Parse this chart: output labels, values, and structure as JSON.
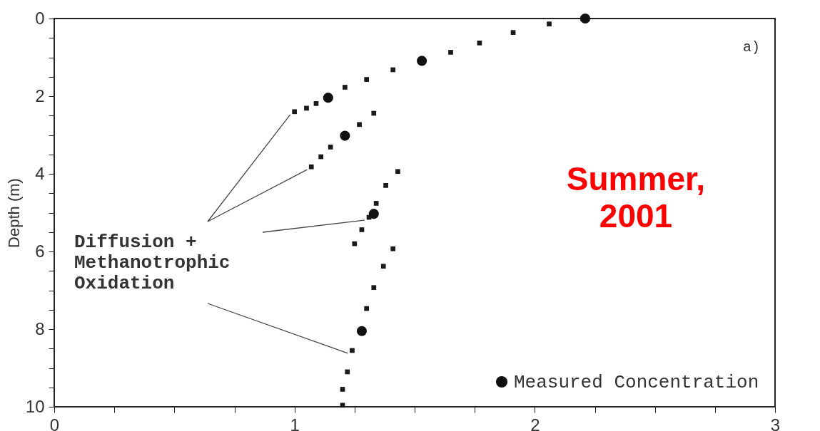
{
  "chart_data": {
    "type": "scatter",
    "ylabel": "Depth (m)",
    "xlim": [
      0,
      3
    ],
    "xticks": [
      0,
      {
        "value": 0.25,
        "label": null
      },
      {
        "value": 0.5,
        "label": null
      },
      {
        "value": 0.75,
        "label": null
      },
      1,
      {
        "value": 1.25,
        "label": null
      },
      {
        "value": 1.5,
        "label": null
      },
      {
        "value": 1.75,
        "label": null
      },
      2,
      {
        "value": 2.25,
        "label": null
      },
      {
        "value": 2.5,
        "label": null
      },
      {
        "value": 2.75,
        "label": null
      },
      3
    ],
    "ylim": [
      10,
      0
    ],
    "yticks": [
      0,
      {
        "value": 0.5,
        "label": null
      },
      {
        "value": 1,
        "label": null
      },
      {
        "value": 1.5,
        "label": null
      },
      2,
      {
        "value": 2.5,
        "label": null
      },
      {
        "value": 3,
        "label": null
      },
      {
        "value": 3.5,
        "label": null
      },
      4,
      {
        "value": 4.5,
        "label": null
      },
      {
        "value": 5,
        "label": null
      },
      {
        "value": 5.5,
        "label": null
      },
      6,
      {
        "value": 6.5,
        "label": null
      },
      {
        "value": 7,
        "label": null
      },
      {
        "value": 7.5,
        "label": null
      },
      8,
      {
        "value": 8.5,
        "label": null
      },
      {
        "value": 9,
        "label": null
      },
      {
        "value": 9.5,
        "label": null
      },
      10
    ],
    "legend": "bottom right",
    "grid": false,
    "annotations": [
      "a)",
      {
        "text": "Diffusion +\nMethanotrophic\nOxidation",
        "x": 1.0,
        "y": 2.4
      },
      "Summer,\n2001"
    ],
    "series": [
      {
        "marker": "square",
        "color": "#1a1a1a",
        "x": [
          2.2,
          2.06,
          1.91,
          1.77,
          1.65,
          1.41,
          1.3,
          1.21,
          1.09,
          1.05,
          1.0
        ],
        "values": [
          0,
          0.14,
          0.36,
          0.63,
          0.87,
          1.32,
          1.57,
          1.77,
          2.19,
          2.31,
          2.4
        ]
      },
      {
        "marker": "square",
        "color": "#1a1a1a",
        "x": [
          1.33,
          1.27,
          1.15,
          1.11,
          1.07
        ],
        "values": [
          2.44,
          2.73,
          3.31,
          3.56,
          3.82
        ]
      },
      {
        "marker": "square",
        "color": "#1a1a1a",
        "x": [
          1.43,
          1.38,
          1.34,
          1.31,
          1.28,
          1.25
        ],
        "values": [
          3.94,
          4.3,
          4.76,
          5.12,
          5.44,
          5.8
        ]
      },
      {
        "marker": "square",
        "color": "#1a1a1a",
        "x": [
          1.41,
          1.37,
          1.33,
          1.3,
          1.24,
          1.22,
          1.2,
          1.2
        ],
        "values": [
          5.93,
          6.38,
          6.93,
          7.47,
          8.55,
          9.1,
          9.55,
          9.96
        ]
      },
      {
        "marker": "circle",
        "name": "Measured Concentration",
        "color": "#111111",
        "x": [
          2.21,
          1.53,
          1.14,
          1.21,
          1.33,
          1.28
        ],
        "values": [
          0,
          1.09,
          2.04,
          3.02,
          5.03,
          8.05
        ]
      }
    ]
  }
}
